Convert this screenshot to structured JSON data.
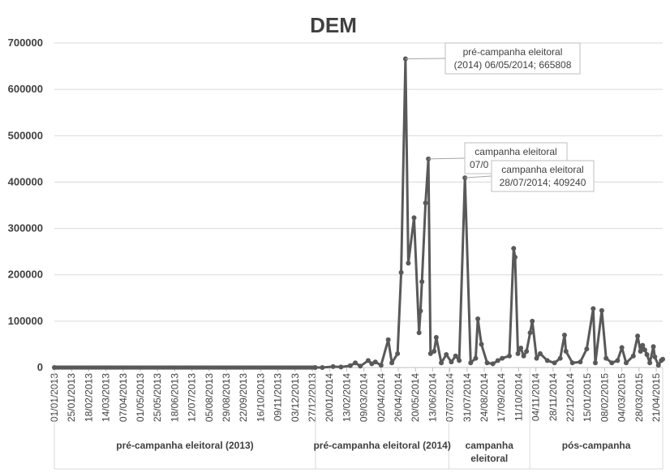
{
  "chart_data": {
    "type": "line",
    "title": "DEM",
    "xlabel": "",
    "ylabel": "",
    "ylim": [
      0,
      700000
    ],
    "yticks": [
      "0",
      "100000",
      "200000",
      "300000",
      "400000",
      "500000",
      "600000",
      "700000"
    ],
    "x_start": "01/01/2013",
    "x_end": "30/04/2015",
    "xtick_labels": [
      "01/01/2013",
      "25/01/2013",
      "18/02/2013",
      "14/03/2013",
      "07/04/2013",
      "01/05/2013",
      "25/05/2013",
      "18/06/2013",
      "12/07/2013",
      "05/08/2013",
      "29/08/2013",
      "22/09/2013",
      "16/10/2013",
      "09/11/2013",
      "03/12/2013",
      "27/12/2013",
      "20/01/2014",
      "13/02/2014",
      "09/03/2014",
      "02/04/2014",
      "26/04/2014",
      "20/05/2014",
      "13/06/2014",
      "07/07/2014",
      "31/07/2014",
      "24/08/2014",
      "17/09/2014",
      "11/10/2014",
      "04/11/2014",
      "28/11/2014",
      "22/12/2014",
      "15/01/2015",
      "08/02/2015",
      "04/03/2015",
      "28/03/2015",
      "21/04/2015"
    ],
    "groups": [
      {
        "label": "pré-campanha eleitoral (2013)",
        "start": "01/01/2013",
        "end": "31/12/2013"
      },
      {
        "label": "pré-campanha eleitoral (2014)",
        "start": "01/01/2014",
        "end": "05/07/2014"
      },
      {
        "label": "campanha eleitoral",
        "start": "06/07/2014",
        "end": "26/10/2014"
      },
      {
        "label": "pós-campanha",
        "start": "27/10/2014",
        "end": "30/04/2015"
      }
    ],
    "series": [
      {
        "color": "#595959",
        "points": [
          [
            "01/01/2013",
            0
          ],
          [
            "31/12/2013",
            0
          ],
          [
            "10/01/2014",
            0
          ],
          [
            "25/01/2014",
            2000
          ],
          [
            "05/02/2014",
            1000
          ],
          [
            "18/02/2014",
            4000
          ],
          [
            "25/02/2014",
            10000
          ],
          [
            "04/03/2014",
            3000
          ],
          [
            "15/03/2014",
            15000
          ],
          [
            "20/03/2014",
            8000
          ],
          [
            "25/03/2014",
            12000
          ],
          [
            "02/04/2014",
            5000
          ],
          [
            "12/04/2014",
            60000
          ],
          [
            "17/04/2014",
            10000
          ],
          [
            "25/04/2014",
            30000
          ],
          [
            "30/04/2014",
            205000
          ],
          [
            "06/05/2014",
            665808
          ],
          [
            "10/05/2014",
            225000
          ],
          [
            "18/05/2014",
            323000
          ],
          [
            "25/05/2014",
            75000
          ],
          [
            "27/05/2014",
            122000
          ],
          [
            "29/05/2014",
            185000
          ],
          [
            "03/06/2014",
            355000
          ],
          [
            "07/06/2014",
            450000
          ],
          [
            "10/06/2014",
            30000
          ],
          [
            "15/06/2014",
            35000
          ],
          [
            "18/06/2014",
            65000
          ],
          [
            "25/06/2014",
            10000
          ],
          [
            "02/07/2014",
            28000
          ],
          [
            "09/07/2014",
            12000
          ],
          [
            "15/07/2014",
            25000
          ],
          [
            "20/07/2014",
            15000
          ],
          [
            "28/07/2014",
            409240
          ],
          [
            "05/08/2014",
            10000
          ],
          [
            "12/08/2014",
            20000
          ],
          [
            "15/08/2014",
            105000
          ],
          [
            "20/08/2014",
            50000
          ],
          [
            "28/08/2014",
            10000
          ],
          [
            "05/09/2014",
            8000
          ],
          [
            "12/09/2014",
            15000
          ],
          [
            "18/09/2014",
            20000
          ],
          [
            "28/09/2014",
            25000
          ],
          [
            "04/10/2014",
            257000
          ],
          [
            "06/10/2014",
            238000
          ],
          [
            "10/10/2014",
            30000
          ],
          [
            "14/10/2014",
            42000
          ],
          [
            "18/10/2014",
            25000
          ],
          [
            "22/10/2014",
            35000
          ],
          [
            "27/10/2014",
            75000
          ],
          [
            "30/10/2014",
            100000
          ],
          [
            "05/11/2014",
            20000
          ],
          [
            "10/11/2014",
            30000
          ],
          [
            "20/11/2014",
            15000
          ],
          [
            "30/11/2014",
            10000
          ],
          [
            "08/12/2014",
            20000
          ],
          [
            "14/12/2014",
            70000
          ],
          [
            "16/12/2014",
            35000
          ],
          [
            "25/12/2014",
            10000
          ],
          [
            "05/01/2015",
            12000
          ],
          [
            "14/01/2015",
            40000
          ],
          [
            "23/01/2015",
            127000
          ],
          [
            "26/01/2015",
            10000
          ],
          [
            "04/02/2015",
            123000
          ],
          [
            "10/02/2015",
            20000
          ],
          [
            "18/02/2015",
            10000
          ],
          [
            "26/02/2015",
            15000
          ],
          [
            "04/03/2015",
            43000
          ],
          [
            "10/03/2015",
            10000
          ],
          [
            "20/03/2015",
            25000
          ],
          [
            "26/03/2015",
            68000
          ],
          [
            "30/03/2015",
            35000
          ],
          [
            "02/04/2015",
            48000
          ],
          [
            "05/04/2015",
            38000
          ],
          [
            "08/04/2015",
            28000
          ],
          [
            "12/04/2015",
            10000
          ],
          [
            "17/04/2015",
            45000
          ],
          [
            "19/04/2015",
            23000
          ],
          [
            "24/04/2015",
            5000
          ],
          [
            "28/04/2015",
            15000
          ],
          [
            "30/04/2015",
            18000
          ]
        ]
      }
    ],
    "annotations": [
      {
        "text_line1": "pré-campanha eleitoral",
        "text_line2": "(2014) 06/05/2014; 665808",
        "date": "06/05/2014",
        "value": 665808
      },
      {
        "text_line1": "campanha eleitoral",
        "text_line2": "07/0",
        "date": "07/06/2014",
        "value": 450000
      },
      {
        "text_line1": "campanha eleitoral",
        "text_line2": "28/07/2014; 409240",
        "date": "28/07/2014",
        "value": 409240
      }
    ]
  }
}
